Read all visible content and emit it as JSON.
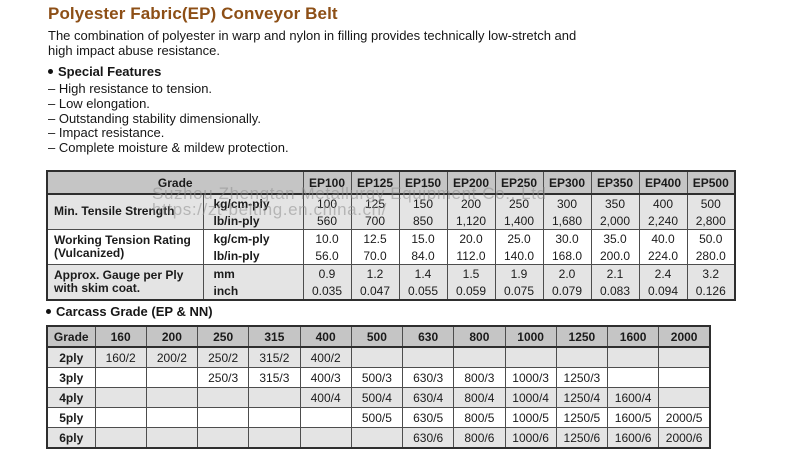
{
  "doc": {
    "title": "Polyester Fabric(EP) Conveyor Belt",
    "intro_line1": "The combination of polyester in warp and nylon in filling provides technically low-stretch and",
    "intro_line2": "high impact abuse resistance.",
    "features_heading": "Special Features",
    "features": [
      "– High resistance to tension.",
      "– Low elongation.",
      "– Outstanding stability dimensionally.",
      "– Impact resistance.",
      "– Complete moisture & mildew protection."
    ]
  },
  "watermark": {
    "line1": "Suzhou Zhengtan Metallurgy Equipment Co., Ltd",
    "line2": "https://zt-belting.en.china.cn/"
  },
  "colors": {
    "title_accent": "#8d4f16",
    "table_header_bg": "#c5c5c5",
    "row_shade_bg": "#e4e4e4",
    "border_dark": "#2e2e2e"
  },
  "spec_table": {
    "grade_header": "Grade",
    "grades": [
      "EP100",
      "EP125",
      "EP150",
      "EP200",
      "EP250",
      "EP300",
      "EP350",
      "EP400",
      "EP500"
    ],
    "bands": [
      {
        "label_lines": [
          "Min. Tensile Strength"
        ],
        "shaded": true,
        "rows": [
          {
            "unit": "kg/cm-ply",
            "values": [
              "100",
              "125",
              "150",
              "200",
              "250",
              "300",
              "350",
              "400",
              "500"
            ]
          },
          {
            "unit": "lb/in-ply",
            "values": [
              "560",
              "700",
              "850",
              "1,120",
              "1,400",
              "1,680",
              "2,000",
              "2,240",
              "2,800"
            ]
          }
        ]
      },
      {
        "label_lines": [
          "Working Tension Rating",
          "(Vulcanized)"
        ],
        "shaded": false,
        "rows": [
          {
            "unit": "kg/cm-ply",
            "values": [
              "10.0",
              "12.5",
              "15.0",
              "20.0",
              "25.0",
              "30.0",
              "35.0",
              "40.0",
              "50.0"
            ]
          },
          {
            "unit": "lb/in-ply",
            "values": [
              "56.0",
              "70.0",
              "84.0",
              "112.0",
              "140.0",
              "168.0",
              "200.0",
              "224.0",
              "280.0"
            ]
          }
        ]
      },
      {
        "label_lines": [
          "Approx. Gauge per Ply",
          "with skim coat."
        ],
        "shaded": true,
        "rows": [
          {
            "unit": "mm",
            "values": [
              "0.9",
              "1.2",
              "1.4",
              "1.5",
              "1.9",
              "2.0",
              "2.1",
              "2.4",
              "3.2"
            ]
          },
          {
            "unit": "inch",
            "values": [
              "0.035",
              "0.047",
              "0.055",
              "0.059",
              "0.075",
              "0.079",
              "0.083",
              "0.094",
              "0.126"
            ]
          }
        ]
      }
    ]
  },
  "carcass_table": {
    "heading": "Carcass Grade (EP & NN)",
    "grade_header": "Grade",
    "columns": [
      "160",
      "200",
      "250",
      "315",
      "400",
      "500",
      "630",
      "800",
      "1000",
      "1250",
      "1600",
      "2000"
    ],
    "rows": [
      {
        "label": "2ply",
        "shaded": true,
        "cells": [
          "160/2",
          "200/2",
          "250/2",
          "315/2",
          "400/2",
          "",
          "",
          "",
          "",
          "",
          "",
          ""
        ]
      },
      {
        "label": "3ply",
        "shaded": false,
        "cells": [
          "",
          "",
          "250/3",
          "315/3",
          "400/3",
          "500/3",
          "630/3",
          "800/3",
          "1000/3",
          "1250/3",
          "",
          ""
        ]
      },
      {
        "label": "4ply",
        "shaded": true,
        "cells": [
          "",
          "",
          "",
          "",
          "400/4",
          "500/4",
          "630/4",
          "800/4",
          "1000/4",
          "1250/4",
          "1600/4",
          ""
        ]
      },
      {
        "label": "5ply",
        "shaded": false,
        "cells": [
          "",
          "",
          "",
          "",
          "",
          "500/5",
          "630/5",
          "800/5",
          "1000/5",
          "1250/5",
          "1600/5",
          "2000/5"
        ]
      },
      {
        "label": "6ply",
        "shaded": true,
        "cells": [
          "",
          "",
          "",
          "",
          "",
          "",
          "630/6",
          "800/6",
          "1000/6",
          "1250/6",
          "1600/6",
          "2000/6"
        ]
      }
    ]
  }
}
